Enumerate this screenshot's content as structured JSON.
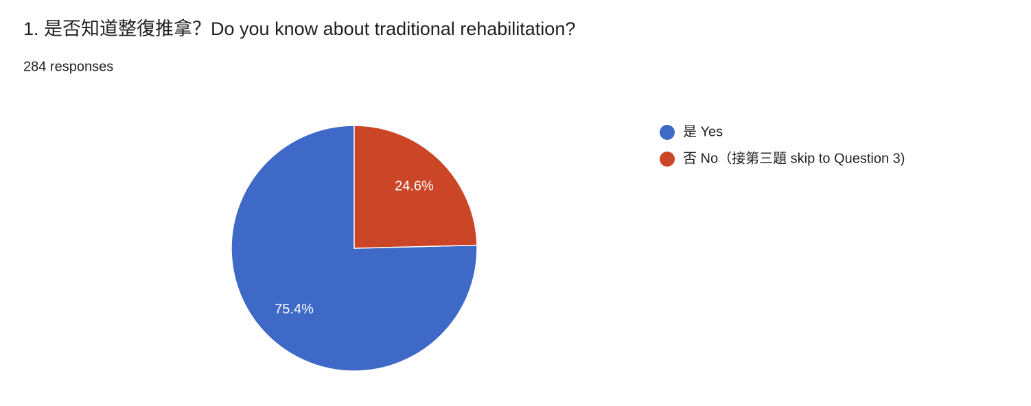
{
  "chart_data": {
    "type": "pie",
    "title": "1. 是否知道整復推拿？Do you know about traditional rehabilitation?",
    "subtitle": "284 responses",
    "categories": [
      "是 Yes",
      "否 No（接第三題 skip to Question 3)"
    ],
    "values": [
      75.4,
      24.6
    ],
    "value_labels": [
      "75.4%",
      "24.6%"
    ],
    "colors": [
      "#3e69c6",
      "#cb4527"
    ],
    "legend": "right"
  }
}
